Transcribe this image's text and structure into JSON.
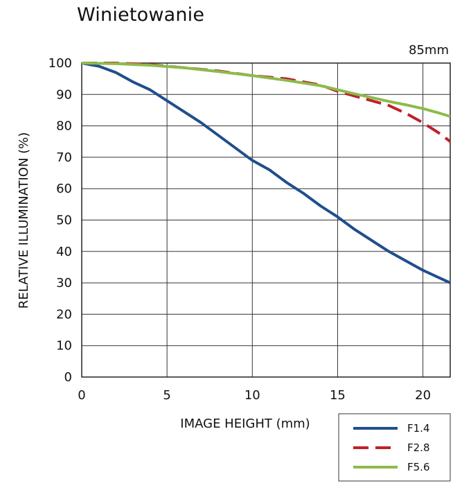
{
  "page": {
    "title": "Winietowanie"
  },
  "chart_data": {
    "type": "line",
    "title": "Winietowanie",
    "annotation": "85mm",
    "xlabel": "IMAGE HEIGHT (mm)",
    "ylabel": "RELATIVE ILLUMINATION (%)",
    "xlim": [
      0,
      21.6
    ],
    "ylim": [
      0,
      100
    ],
    "x_ticks": [
      0,
      5,
      10,
      15,
      20
    ],
    "y_ticks": [
      0,
      10,
      20,
      30,
      40,
      50,
      60,
      70,
      80,
      90,
      100
    ],
    "grid": true,
    "legend_position": "bottom-right",
    "series": [
      {
        "name": "F1.4",
        "color": "#1f4e8c",
        "style": "solid",
        "x": [
          0,
          1,
          2,
          3,
          4,
          5,
          6,
          7,
          8,
          9,
          10,
          11,
          12,
          13,
          14,
          15,
          16,
          17,
          18,
          19,
          20,
          21,
          21.6
        ],
        "y": [
          100,
          99,
          97,
          94,
          91.5,
          88,
          84.5,
          81,
          77,
          73,
          69,
          66,
          62,
          58.5,
          54.5,
          51,
          47,
          43.5,
          40,
          37,
          34,
          31.5,
          30
        ]
      },
      {
        "name": "F2.8",
        "color": "#c0202a",
        "style": "dashed",
        "x": [
          0,
          2,
          4,
          6,
          8,
          10,
          12,
          14,
          15,
          16,
          17,
          18,
          19,
          20,
          21,
          21.6
        ],
        "y": [
          100,
          100,
          99.5,
          98.5,
          97.5,
          96,
          95,
          93,
          91,
          89.5,
          88,
          86.5,
          84,
          81,
          77.5,
          75
        ]
      },
      {
        "name": "F5.6",
        "color": "#8cbb4a",
        "style": "solid",
        "x": [
          0,
          2,
          4,
          6,
          8,
          10,
          12,
          14,
          15,
          16,
          17,
          18,
          19,
          20,
          21,
          21.6
        ],
        "y": [
          100,
          99.8,
          99.3,
          98.5,
          97.3,
          96,
          94.5,
          92.8,
          91.5,
          90.2,
          89,
          87.8,
          86.7,
          85.5,
          84,
          83
        ]
      }
    ]
  }
}
